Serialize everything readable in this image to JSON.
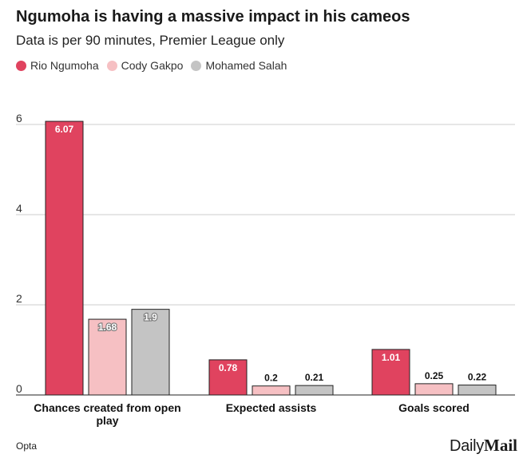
{
  "header": {
    "title": "Ngumoha is having a massive impact in his cameos",
    "subtitle": "Data is per 90 minutes, Premier League only"
  },
  "footer": {
    "source": "Opta",
    "brand_part1": "Daily",
    "brand_part2": "Mail"
  },
  "chart_data": {
    "type": "bar",
    "title": "Ngumoha is having a massive impact in his cameos",
    "subtitle": "Data is per 90 minutes, Premier League only",
    "categories": [
      "Chances created from open play",
      "Expected assists",
      "Goals scored"
    ],
    "series": [
      {
        "name": "Rio Ngumoha",
        "values": [
          6.07,
          0.78,
          1.01
        ],
        "color": "#e0435f"
      },
      {
        "name": "Cody Gakpo",
        "values": [
          1.68,
          0.2,
          0.25
        ],
        "color": "#f6c0c3"
      },
      {
        "name": "Mohamed Salah",
        "values": [
          1.9,
          0.21,
          0.22
        ],
        "color": "#c4c4c4"
      }
    ],
    "value_labels": [
      [
        "6.07",
        "0.78",
        "1.01"
      ],
      [
        "1.68",
        "0.2",
        "0.25"
      ],
      [
        "1.9",
        "0.21",
        "0.22"
      ]
    ],
    "yticks": [
      "0",
      "2",
      "4",
      "6"
    ],
    "ylim": [
      0,
      6
    ],
    "grid": true,
    "legend_position": "top-left",
    "xlabel": "",
    "ylabel": ""
  }
}
